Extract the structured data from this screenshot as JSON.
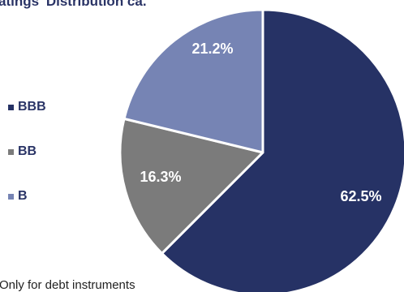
{
  "chart_data": {
    "type": "pie",
    "title": "atings' Distribution ca.",
    "slices": [
      {
        "label": "BBB",
        "value": 62.5,
        "value_label": "62.5%",
        "color": "#263265"
      },
      {
        "label": "BB",
        "value": 16.3,
        "value_label": "16.3%",
        "color": "#7b7b7b"
      },
      {
        "label": "B",
        "value": 21.2,
        "value_label": "21.2%",
        "color": "#7684b4"
      }
    ],
    "start_angle_deg": 0,
    "direction": "clockwise",
    "legend_position": "left",
    "footnote": "Only for debt instruments"
  }
}
